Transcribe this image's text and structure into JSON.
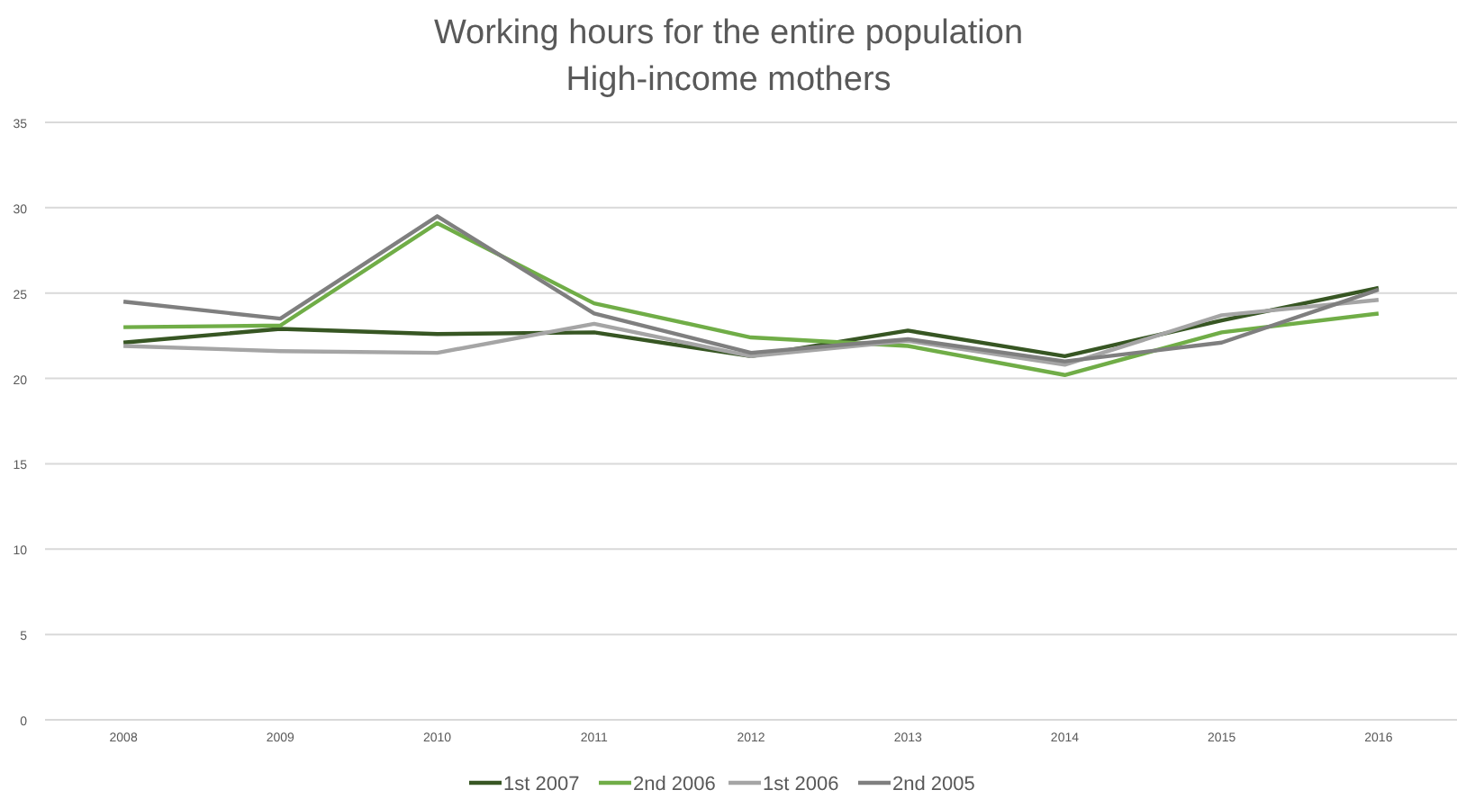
{
  "chart_data": {
    "type": "line",
    "title": "Working hours for the entire population",
    "subtitle": "High-income mothers",
    "categories": [
      "2008",
      "2009",
      "2010",
      "2011",
      "2012",
      "2013",
      "2014",
      "2015",
      "2016"
    ],
    "series": [
      {
        "name": "1st 2007",
        "color": "#375623",
        "values": [
          22.1,
          22.9,
          22.6,
          22.7,
          21.3,
          22.8,
          21.3,
          23.4,
          25.3
        ]
      },
      {
        "name": "2nd 2006",
        "color": "#70ad47",
        "values": [
          23.0,
          23.1,
          29.1,
          24.4,
          22.4,
          21.9,
          20.2,
          22.7,
          23.8
        ]
      },
      {
        "name": "1st 2006",
        "color": "#a5a5a5",
        "values": [
          21.9,
          21.6,
          21.5,
          23.2,
          21.3,
          22.2,
          20.8,
          23.7,
          24.6
        ]
      },
      {
        "name": "2nd 2005",
        "color": "#7f7f7f",
        "values": [
          24.5,
          23.5,
          29.5,
          23.8,
          21.5,
          22.3,
          21.0,
          22.1,
          25.2
        ]
      }
    ],
    "ylim": [
      0,
      35
    ],
    "yticks": [
      0,
      5,
      10,
      15,
      20,
      25,
      30,
      35
    ],
    "grid": "y",
    "legend": "bottom",
    "marker": "none",
    "line_style": "solid"
  }
}
